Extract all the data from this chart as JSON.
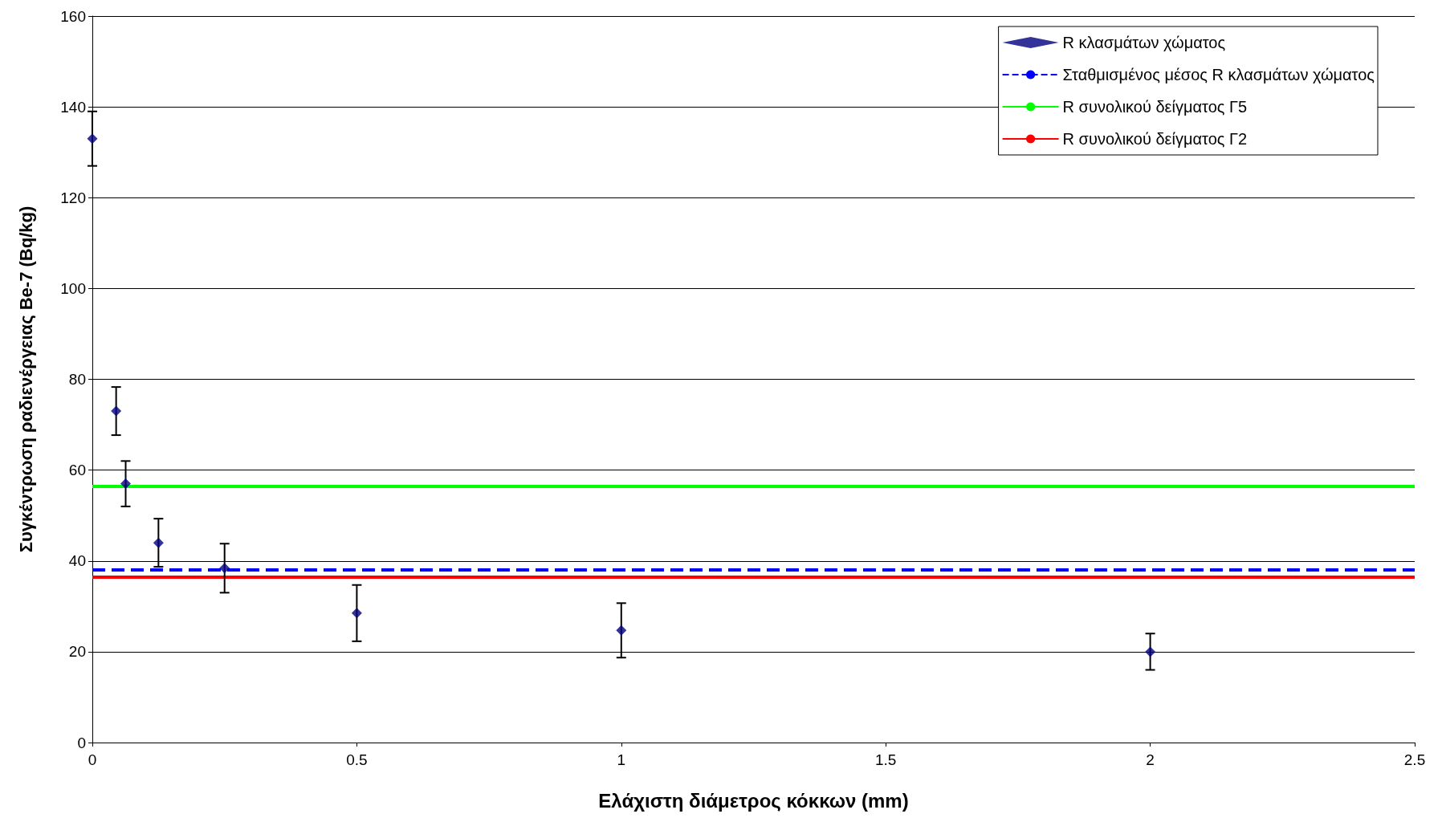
{
  "chart_data": {
    "type": "scatter",
    "xlabel": "Ελάχιστη διάμετρος κόκκων (mm)",
    "ylabel": "Συγκέντρωση ραδιενέργειας Be-7 (Bq/kg)",
    "xlim": [
      0,
      2.5
    ],
    "xticks": [
      0,
      0.5,
      1,
      1.5,
      2,
      2.5
    ],
    "ylim": [
      0,
      160
    ],
    "yticks": [
      0,
      20,
      40,
      60,
      80,
      100,
      120,
      140,
      160
    ],
    "grid": "y",
    "legend": "top right",
    "series": [
      {
        "name": "R κλασμάτων χώματος",
        "color": "#000080",
        "marker": "diamond",
        "x": [
          0,
          0.045,
          0.063,
          0.125,
          0.25,
          0.5,
          1,
          2
        ],
        "values": [
          133,
          73,
          57,
          44,
          38.4,
          28.5,
          24.7,
          20
        ],
        "errors": [
          6,
          5.3,
          5,
          5.3,
          5.4,
          6.2,
          6,
          4
        ]
      },
      {
        "name": "Σταθμισμένος μέσος R κλασμάτων χώματος",
        "type": "line",
        "color": "#0000ff",
        "line_style": "dashed",
        "marker": "none",
        "x": [
          0,
          2.5
        ],
        "values": [
          38,
          38
        ]
      },
      {
        "name": "R συνολικού δείγματος Γ5",
        "type": "line",
        "color": "#00ff00",
        "line_style": "solid",
        "marker": "none",
        "x": [
          0,
          2.5
        ],
        "values": [
          56.4,
          56.4
        ]
      },
      {
        "name": "R συνολικού δείγματος Γ2",
        "type": "line",
        "color": "#ff0000",
        "line_style": "solid",
        "marker": "none",
        "x": [
          0,
          2.5
        ],
        "values": [
          36.4,
          36.4
        ]
      }
    ]
  }
}
